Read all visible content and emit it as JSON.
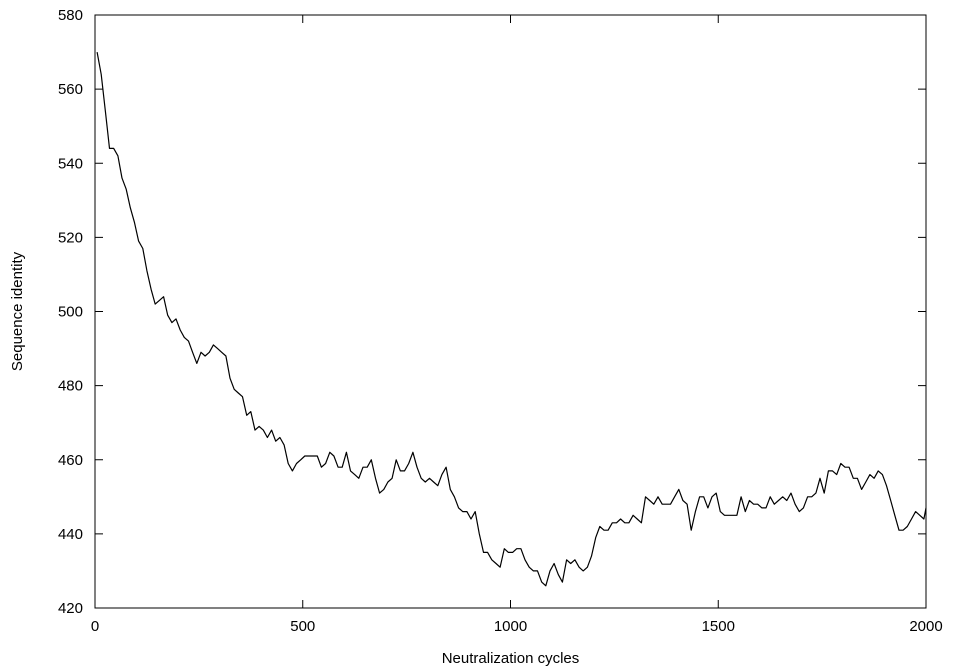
{
  "chart_data": {
    "type": "line",
    "title": "",
    "xlabel": "Neutralization cycles",
    "ylabel": "Sequence identity",
    "xlim": [
      0,
      2000
    ],
    "ylim": [
      420,
      580
    ],
    "xticks": [
      0,
      500,
      1000,
      1500,
      2000
    ],
    "yticks": [
      420,
      440,
      460,
      480,
      500,
      520,
      540,
      560,
      580
    ],
    "grid": false,
    "legend": "none",
    "line_color": "#000000",
    "series": [
      {
        "x": [
          5,
          15,
          25,
          35,
          45,
          55,
          65,
          75,
          85,
          95,
          105,
          115,
          125,
          135,
          145,
          155,
          165,
          175,
          185,
          195,
          205,
          215,
          225,
          235,
          245,
          255,
          265,
          275,
          285,
          295,
          305,
          315,
          325,
          335,
          345,
          355,
          365,
          375,
          385,
          395,
          405,
          415,
          425,
          435,
          445,
          455,
          465,
          475,
          485,
          495,
          505,
          515,
          525,
          535,
          545,
          555,
          565,
          575,
          585,
          595,
          605,
          615,
          625,
          635,
          645,
          655,
          665,
          675,
          685,
          695,
          705,
          715,
          725,
          735,
          745,
          755,
          765,
          775,
          785,
          795,
          805,
          815,
          825,
          835,
          845,
          855,
          865,
          875,
          885,
          895,
          905,
          915,
          925,
          935,
          945,
          955,
          965,
          975,
          985,
          995,
          1005,
          1015,
          1025,
          1035,
          1045,
          1055,
          1065,
          1075,
          1085,
          1095,
          1105,
          1115,
          1125,
          1135,
          1145,
          1155,
          1165,
          1175,
          1185,
          1195,
          1205,
          1215,
          1225,
          1235,
          1245,
          1255,
          1265,
          1275,
          1285,
          1295,
          1305,
          1315,
          1325,
          1335,
          1345,
          1355,
          1365,
          1375,
          1385,
          1395,
          1405,
          1415,
          1425,
          1435,
          1445,
          1455,
          1465,
          1475,
          1485,
          1495,
          1505,
          1515,
          1525,
          1535,
          1545,
          1555,
          1565,
          1575,
          1585,
          1595,
          1605,
          1615,
          1625,
          1635,
          1645,
          1655,
          1665,
          1675,
          1685,
          1695,
          1705,
          1715,
          1725,
          1735,
          1745,
          1755,
          1765,
          1775,
          1785,
          1795,
          1805,
          1815,
          1825,
          1835,
          1845,
          1855,
          1865,
          1875,
          1885,
          1895,
          1905,
          1915,
          1925,
          1935,
          1945,
          1955,
          1965,
          1975,
          1985,
          1995,
          2000
        ],
        "y": [
          570,
          564,
          554,
          544,
          544,
          542,
          536,
          533,
          528,
          524,
          519,
          517,
          511,
          506,
          502,
          503,
          504,
          499,
          497,
          498,
          495,
          493,
          492,
          489,
          486,
          489,
          488,
          489,
          491,
          490,
          489,
          488,
          482,
          479,
          478,
          477,
          472,
          473,
          468,
          469,
          468,
          466,
          468,
          465,
          466,
          464,
          459,
          457,
          459,
          460,
          461,
          461,
          461,
          461,
          458,
          459,
          462,
          461,
          458,
          458,
          462,
          457,
          456,
          455,
          458,
          458,
          460,
          455,
          451,
          452,
          454,
          455,
          460,
          457,
          457,
          459,
          462,
          458,
          455,
          454,
          455,
          454,
          453,
          456,
          458,
          452,
          450,
          447,
          446,
          446,
          444,
          446,
          440,
          435,
          435,
          433,
          432,
          431,
          436,
          435,
          435,
          436,
          436,
          433,
          431,
          430,
          430,
          427,
          426,
          430,
          432,
          429,
          427,
          433,
          432,
          433,
          431,
          430,
          431,
          434,
          439,
          442,
          441,
          441,
          443,
          443,
          444,
          443,
          443,
          445,
          444,
          443,
          450,
          449,
          448,
          450,
          448,
          448,
          448,
          450,
          452,
          449,
          448,
          441,
          446,
          450,
          450,
          447,
          450,
          451,
          446,
          445,
          445,
          445,
          445,
          450,
          446,
          449,
          448,
          448,
          447,
          447,
          450,
          448,
          449,
          450,
          449,
          451,
          448,
          446,
          447,
          450,
          450,
          451,
          455,
          451,
          457,
          457,
          456,
          459,
          458,
          458,
          455,
          455,
          452,
          454,
          456,
          455,
          457,
          456,
          453,
          449,
          445,
          441,
          441,
          442,
          444,
          446,
          445,
          444,
          447
        ]
      }
    ]
  }
}
